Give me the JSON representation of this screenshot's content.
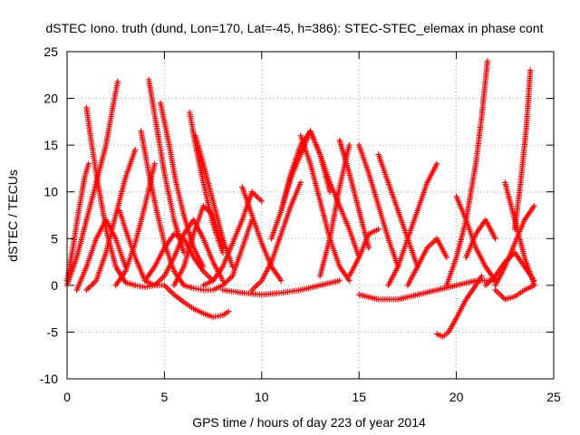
{
  "chart_data": {
    "type": "scatter",
    "title": "dSTEC Iono. truth (dund, Lon=170, Lat=-45, h=386): STEC-STEC_elemax in phase cont",
    "xlabel": "GPS time / hours of day 223 of year 2014",
    "ylabel": "dSTEC  / TECUs",
    "xlim": [
      0,
      25
    ],
    "ylim": [
      -10,
      25
    ],
    "xticks": [
      0,
      5,
      10,
      15,
      20,
      25
    ],
    "yticks": [
      -10,
      -5,
      0,
      5,
      10,
      15,
      20,
      25
    ],
    "grid": true,
    "marker": "+",
    "color": "#ff0000",
    "series": [
      {
        "x": [
          0.0,
          0.3,
          0.6,
          0.9,
          1.1
        ],
        "y": [
          0.5,
          4.0,
          8.0,
          11.5,
          13.0
        ]
      },
      {
        "x": [
          0.0,
          0.5,
          1.0,
          1.5,
          2.0,
          2.3,
          2.6
        ],
        "y": [
          0.0,
          3.0,
          7.0,
          11.0,
          15.0,
          18.5,
          21.8
        ]
      },
      {
        "x": [
          1.0,
          1.2,
          1.5,
          2.0,
          2.5,
          3.0,
          3.5
        ],
        "y": [
          19.0,
          16.0,
          12.0,
          6.0,
          2.0,
          0.3,
          0.0
        ]
      },
      {
        "x": [
          0.5,
          1.0,
          1.5,
          2.0,
          2.5,
          3.0
        ],
        "y": [
          -0.5,
          2.0,
          5.0,
          7.0,
          5.0,
          2.0
        ]
      },
      {
        "x": [
          1.0,
          1.5,
          2.0,
          2.5,
          3.0,
          3.5
        ],
        "y": [
          -0.5,
          0.5,
          3.5,
          7.5,
          11.5,
          14.5
        ]
      },
      {
        "x": [
          2.5,
          3.0,
          3.5,
          4.0,
          4.5
        ],
        "y": [
          0.0,
          1.5,
          4.5,
          8.5,
          13.0
        ]
      },
      {
        "x": [
          2.7,
          3.0,
          3.5,
          4.0,
          4.5,
          5.0
        ],
        "y": [
          8.0,
          6.0,
          3.0,
          0.5,
          0.0,
          0.0
        ]
      },
      {
        "x": [
          3.8,
          4.2,
          4.6,
          5.0,
          5.5,
          6.0
        ],
        "y": [
          16.5,
          12.0,
          8.0,
          4.5,
          1.5,
          0.0
        ]
      },
      {
        "x": [
          4.2,
          4.6,
          5.0,
          5.5,
          6.0
        ],
        "y": [
          22.0,
          17.0,
          12.0,
          7.0,
          3.5
        ]
      },
      {
        "x": [
          4.8,
          5.2,
          5.6,
          6.0,
          6.5,
          7.0
        ],
        "y": [
          19.5,
          15.5,
          11.0,
          7.5,
          4.0,
          2.0
        ]
      },
      {
        "x": [
          3.5,
          4.0,
          4.5,
          5.0,
          5.5,
          6.0,
          6.5,
          7.0,
          7.5,
          8.0
        ],
        "y": [
          0.0,
          -0.2,
          0.0,
          1.0,
          3.0,
          5.5,
          7.0,
          5.0,
          2.5,
          0.5
        ]
      },
      {
        "x": [
          4.0,
          4.5,
          5.0,
          5.5,
          6.0,
          6.5,
          7.0,
          7.5
        ],
        "y": [
          0.5,
          2.0,
          4.0,
          5.5,
          5.0,
          3.0,
          1.5,
          0.5
        ]
      },
      {
        "x": [
          6.3,
          6.6,
          7.0,
          7.5,
          8.0
        ],
        "y": [
          18.5,
          15.0,
          11.0,
          6.5,
          3.5
        ]
      },
      {
        "x": [
          6.6,
          7.0,
          7.5,
          8.0,
          8.5
        ],
        "y": [
          16.0,
          13.0,
          9.0,
          5.0,
          2.0
        ]
      },
      {
        "x": [
          5.0,
          5.5,
          6.0,
          6.5,
          7.0,
          7.5,
          8.0,
          8.3
        ],
        "y": [
          0.0,
          -1.0,
          -1.8,
          -2.5,
          -3.0,
          -3.4,
          -3.2,
          -2.8
        ]
      },
      {
        "x": [
          5.5,
          6.0,
          6.5,
          7.0,
          7.5,
          8.0
        ],
        "y": [
          0.0,
          2.0,
          5.5,
          8.5,
          7.5,
          4.0
        ]
      },
      {
        "x": [
          6.0,
          6.5,
          7.0,
          7.5,
          8.0,
          8.5,
          9.0,
          9.5
        ],
        "y": [
          0.0,
          -0.3,
          -0.5,
          -0.5,
          0.0,
          1.0,
          4.0,
          7.0
        ]
      },
      {
        "x": [
          7.0,
          7.5,
          8.0,
          8.5,
          9.0,
          9.5,
          10.0
        ],
        "y": [
          0.0,
          0.5,
          2.0,
          4.5,
          7.0,
          10.0,
          9.0
        ]
      },
      {
        "x": [
          9.0,
          9.5,
          10.0,
          10.5,
          11.0
        ],
        "y": [
          10.5,
          7.5,
          4.5,
          2.0,
          0.5
        ]
      },
      {
        "x": [
          8.0,
          9.0,
          10.0,
          11.0,
          12.0,
          13.0,
          14.0
        ],
        "y": [
          -0.5,
          -0.8,
          -1.0,
          -0.8,
          -0.5,
          0.0,
          0.5
        ]
      },
      {
        "x": [
          9.5,
          10.0,
          10.5,
          11.0,
          11.5,
          12.0
        ],
        "y": [
          -0.5,
          0.5,
          2.5,
          5.5,
          8.5,
          11.0
        ]
      },
      {
        "x": [
          10.5,
          11.0,
          11.5,
          12.0,
          12.5
        ],
        "y": [
          5.0,
          8.0,
          11.5,
          14.0,
          16.5
        ]
      },
      {
        "x": [
          11.0,
          11.5,
          12.0,
          12.5,
          13.0,
          13.5
        ],
        "y": [
          8.0,
          12.0,
          15.0,
          16.5,
          14.0,
          10.0
        ]
      },
      {
        "x": [
          12.0,
          12.5,
          13.0,
          13.5,
          14.0,
          14.5
        ],
        "y": [
          16.0,
          13.0,
          9.0,
          5.0,
          2.0,
          0.5
        ]
      },
      {
        "x": [
          12.5,
          13.0,
          13.5,
          14.0,
          14.5,
          15.0
        ],
        "y": [
          16.5,
          14.0,
          11.0,
          8.5,
          6.0,
          3.0
        ]
      },
      {
        "x": [
          13.0,
          13.5,
          14.0,
          14.5
        ],
        "y": [
          1.0,
          5.0,
          10.5,
          15.0
        ]
      },
      {
        "x": [
          14.0,
          14.5,
          15.0,
          15.5
        ],
        "y": [
          15.5,
          12.0,
          8.0,
          4.0
        ]
      },
      {
        "x": [
          15.0,
          15.5,
          16.0,
          16.5,
          17.0
        ],
        "y": [
          15.0,
          12.0,
          8.5,
          5.0,
          2.0
        ]
      },
      {
        "x": [
          14.5,
          15.0,
          15.5,
          16.0
        ],
        "y": [
          1.0,
          3.0,
          5.5,
          6.0
        ]
      },
      {
        "x": [
          16.0,
          16.5,
          17.0,
          17.5,
          18.0
        ],
        "y": [
          14.0,
          11.0,
          8.0,
          5.0,
          2.0
        ]
      },
      {
        "x": [
          16.5,
          17.0,
          17.5,
          18.0,
          18.5,
          19.0
        ],
        "y": [
          0.0,
          2.0,
          5.0,
          8.0,
          11.0,
          13.0
        ]
      },
      {
        "x": [
          17.5,
          18.0,
          18.5,
          19.0,
          19.5
        ],
        "y": [
          0.0,
          2.0,
          4.0,
          5.0,
          3.0
        ]
      },
      {
        "x": [
          15.0,
          16.0,
          17.0,
          18.0,
          19.0,
          20.0,
          21.0,
          22.0
        ],
        "y": [
          -1.0,
          -1.5,
          -1.5,
          -1.0,
          -0.5,
          0.0,
          0.5,
          0.5
        ]
      },
      {
        "x": [
          19.5,
          20.0,
          20.5,
          21.0,
          21.3,
          21.6
        ],
        "y": [
          0.0,
          3.0,
          7.0,
          13.0,
          18.0,
          24.0
        ]
      },
      {
        "x": [
          20.5,
          21.0,
          21.5,
          22.0
        ],
        "y": [
          3.0,
          5.5,
          7.0,
          5.0
        ]
      },
      {
        "x": [
          19.0,
          19.3,
          19.6,
          20.0,
          20.5,
          21.0,
          21.3
        ],
        "y": [
          -5.2,
          -5.5,
          -5.0,
          -3.5,
          -1.5,
          0.0,
          1.0
        ]
      },
      {
        "x": [
          20.0,
          20.5,
          21.0,
          21.5,
          22.0
        ],
        "y": [
          9.5,
          7.0,
          4.0,
          2.0,
          0.5
        ]
      },
      {
        "x": [
          22.5,
          23.0,
          23.5,
          24.0
        ],
        "y": [
          11.0,
          7.0,
          3.0,
          0.0
        ]
      },
      {
        "x": [
          22.0,
          22.5,
          23.0,
          23.5,
          24.0
        ],
        "y": [
          0.0,
          2.0,
          4.5,
          7.0,
          8.5
        ]
      },
      {
        "x": [
          23.0,
          23.3,
          23.6,
          23.8
        ],
        "y": [
          6.0,
          11.0,
          17.0,
          23.0
        ]
      },
      {
        "x": [
          22.0,
          22.5,
          23.0,
          23.5,
          24.0
        ],
        "y": [
          -0.5,
          -1.5,
          -1.2,
          -0.5,
          0.0
        ]
      },
      {
        "x": [
          21.5,
          22.0,
          22.5,
          23.0,
          23.5,
          24.0
        ],
        "y": [
          0.0,
          1.0,
          2.5,
          3.5,
          2.0,
          0.5
        ]
      }
    ]
  }
}
